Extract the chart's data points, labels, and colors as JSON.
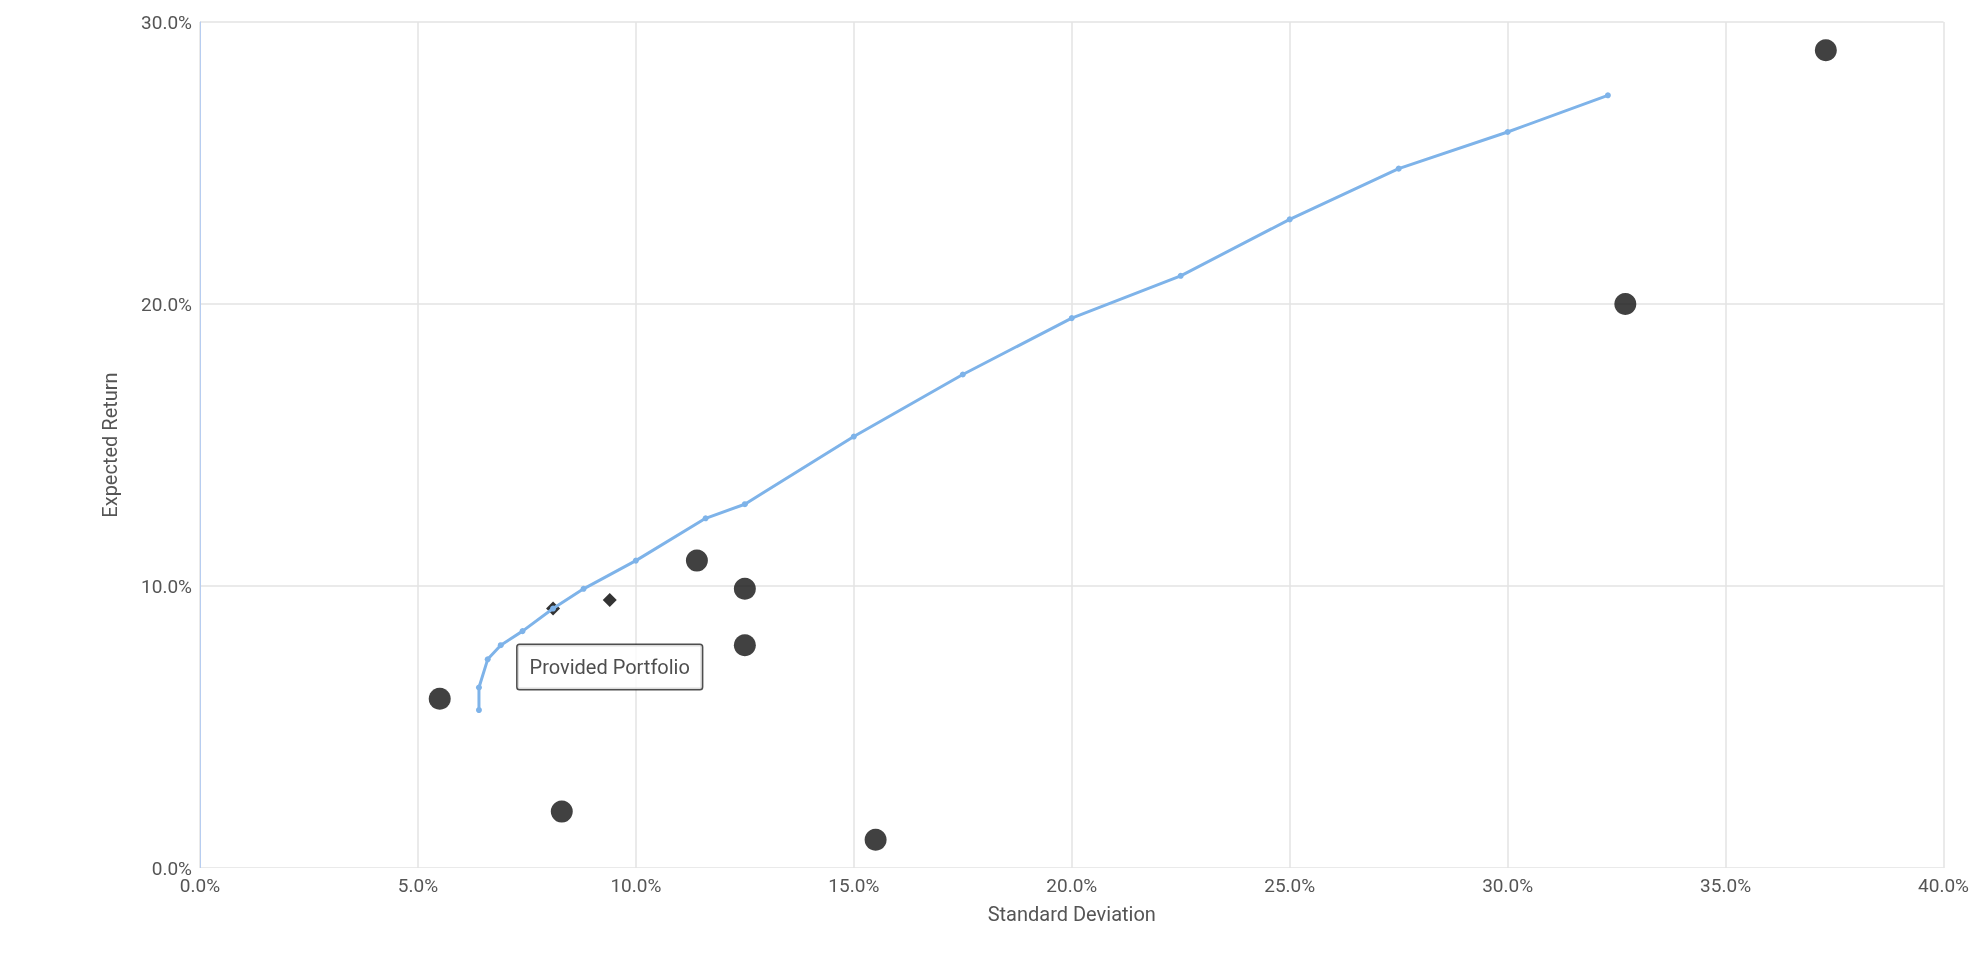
{
  "chart_data": {
    "type": "scatter",
    "xlabel": "Standard Deviation",
    "ylabel": "Expected Return",
    "xlim": [
      0,
      40
    ],
    "ylim": [
      0,
      30
    ],
    "xticks": [
      {
        "value": 0,
        "label": "0.0%"
      },
      {
        "value": 5,
        "label": "5.0%"
      },
      {
        "value": 10,
        "label": "10.0%"
      },
      {
        "value": 15,
        "label": "15.0%"
      },
      {
        "value": 20,
        "label": "20.0%"
      },
      {
        "value": 25,
        "label": "25.0%"
      },
      {
        "value": 30,
        "label": "30.0%"
      },
      {
        "value": 35,
        "label": "35.0%"
      },
      {
        "value": 40,
        "label": "40.0%"
      }
    ],
    "yticks": [
      {
        "value": 0,
        "label": "0.0%"
      },
      {
        "value": 10,
        "label": "10.0%"
      },
      {
        "value": 20,
        "label": "20.0%"
      },
      {
        "value": 30,
        "label": "30.0%"
      }
    ],
    "grid": true,
    "series": [
      {
        "type": "line",
        "color": "#7eb3e9",
        "marker": "circle",
        "x": [
          6.4,
          6.4,
          6.6,
          6.9,
          7.4,
          8.1,
          8.8,
          10.0,
          11.6,
          12.5,
          15,
          17.5,
          20,
          22.5,
          25,
          27.5,
          30,
          32.3
        ],
        "values": [
          5.6,
          6.4,
          7.4,
          7.9,
          8.4,
          9.2,
          9.9,
          10.9,
          12.4,
          12.9,
          15.3,
          17.5,
          19.5,
          21.0,
          23.0,
          24.8,
          26.1,
          27.4
        ]
      },
      {
        "color": "#111111",
        "marker": "circle",
        "x": [
          5.5,
          8.3,
          15.5,
          11.4,
          12.5,
          12.5,
          32.7,
          37.3
        ],
        "values": [
          6.0,
          2.0,
          1.0,
          10.9,
          9.9,
          7.9,
          20.0,
          29.0
        ]
      },
      {
        "color": "#000000",
        "marker": "diamond",
        "x": [
          8.1,
          9.4
        ],
        "values": [
          9.2,
          9.5
        ]
      }
    ],
    "annotations": [
      {
        "text": "Provided Portfolio",
        "x": 9.4,
        "y": 9.5
      }
    ]
  }
}
